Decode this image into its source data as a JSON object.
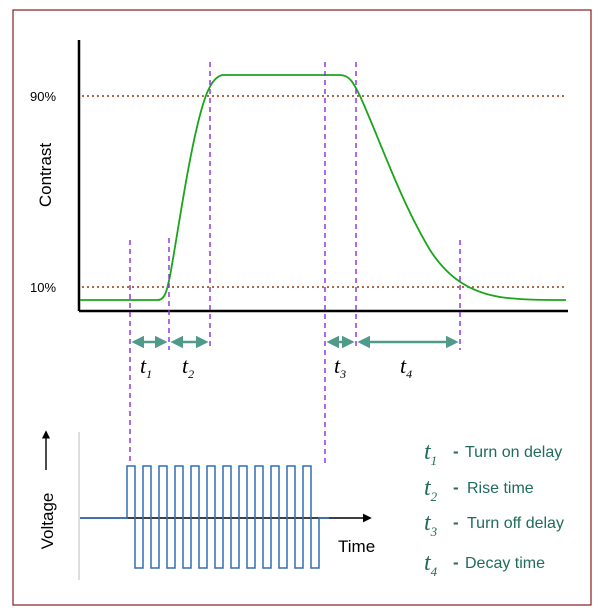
{
  "diagram": {
    "top_graph": {
      "y_axis_label": "Contrast",
      "level_high_label": "90%",
      "level_low_label": "10%",
      "interval_labels": [
        {
          "symbol": "t",
          "sub": "1"
        },
        {
          "symbol": "t",
          "sub": "2"
        },
        {
          "symbol": "t",
          "sub": "3"
        },
        {
          "symbol": "t",
          "sub": "4"
        }
      ]
    },
    "bottom_graph": {
      "y_axis_label": "Voltage",
      "x_axis_label": "Time"
    },
    "legend": [
      {
        "symbol": "t",
        "sub": "1",
        "dash": "-",
        "text": "Turn on delay"
      },
      {
        "symbol": "t",
        "sub": "2",
        "dash": "-",
        "text": "Rise time"
      },
      {
        "symbol": "t",
        "sub": "3",
        "dash": "-",
        "text": "Turn off delay"
      },
      {
        "symbol": "t",
        "sub": "4",
        "dash": "-",
        "text": "Decay  time"
      }
    ]
  },
  "colors": {
    "frame_border": "#8a1c1c",
    "axis": "#000000",
    "response_curve": "#1aa51a",
    "threshold_line": "#8b3a10",
    "marker_line": "#8a2be2",
    "interval_arrow": "#4f9a8a",
    "pulse_wave": "#2f6fb5",
    "legend_text": "#1f6b5c"
  }
}
